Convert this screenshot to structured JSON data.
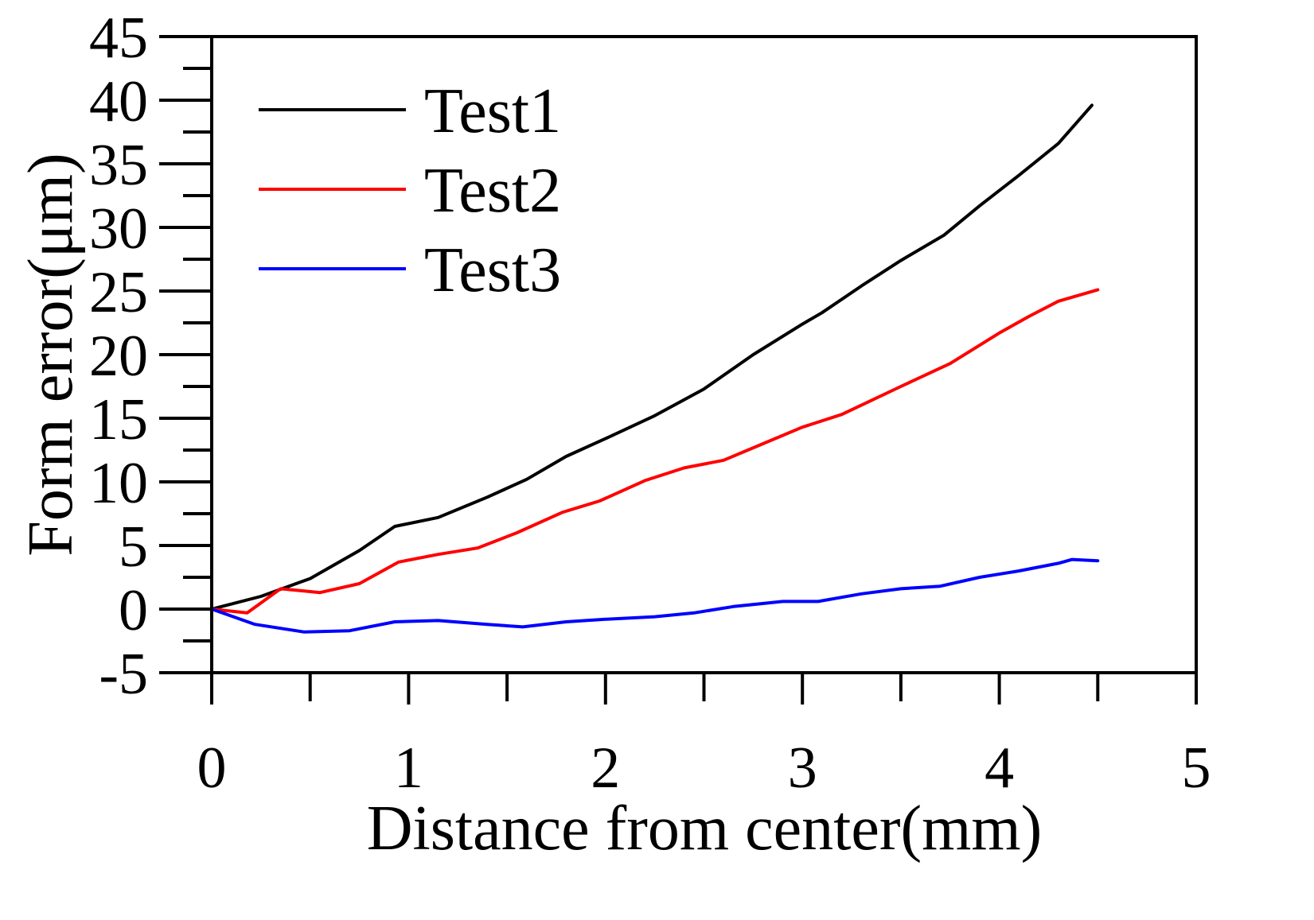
{
  "chart_data": {
    "type": "line",
    "title": "",
    "xlabel": "Distance from center(mm)",
    "ylabel": "Form error(μm)",
    "xlim": [
      0,
      5
    ],
    "ylim": [
      -5,
      45
    ],
    "xticks": [
      0,
      1,
      2,
      3,
      4,
      5
    ],
    "xtick_labels": [
      "0",
      "1",
      "2",
      "3",
      "4",
      "5"
    ],
    "xminor_step": 0.5,
    "yticks": [
      -5,
      0,
      5,
      10,
      15,
      20,
      25,
      30,
      35,
      40,
      45
    ],
    "ytick_labels": [
      "-5",
      "0",
      "5",
      "10",
      "15",
      "20",
      "25",
      "30",
      "35",
      "40",
      "45"
    ],
    "yminor_step": 2.5,
    "grid": false,
    "legend": {
      "position": "top-left",
      "entries": [
        "Test1",
        "Test2",
        "Test3"
      ]
    },
    "series": [
      {
        "name": "Test1",
        "color": "#000000",
        "x": [
          0,
          0.25,
          0.5,
          0.75,
          0.93,
          1.15,
          1.4,
          1.6,
          1.8,
          2.0,
          2.25,
          2.5,
          2.75,
          3.0,
          3.1,
          3.3,
          3.5,
          3.72,
          3.9,
          4.1,
          4.3,
          4.47
        ],
        "y": [
          0,
          1.0,
          2.4,
          4.6,
          6.5,
          7.2,
          8.8,
          10.2,
          12.0,
          13.4,
          15.2,
          17.3,
          20.0,
          22.4,
          23.3,
          25.4,
          27.4,
          29.4,
          31.7,
          34.1,
          36.6,
          39.6
        ]
      },
      {
        "name": "Test2",
        "color": "#ff0000",
        "x": [
          0,
          0.18,
          0.35,
          0.55,
          0.75,
          0.95,
          1.15,
          1.35,
          1.55,
          1.78,
          1.97,
          2.2,
          2.4,
          2.6,
          2.8,
          3.0,
          3.2,
          3.5,
          3.75,
          4.0,
          4.15,
          4.3,
          4.5
        ],
        "y": [
          0,
          -0.3,
          1.6,
          1.3,
          2.0,
          3.7,
          4.3,
          4.8,
          6.0,
          7.6,
          8.5,
          10.1,
          11.1,
          11.7,
          13.0,
          14.3,
          15.3,
          17.5,
          19.3,
          21.7,
          23.0,
          24.2,
          25.1
        ]
      },
      {
        "name": "Test3",
        "color": "#0000ff",
        "x": [
          0,
          0.22,
          0.47,
          0.7,
          0.93,
          1.15,
          1.4,
          1.58,
          1.8,
          2.0,
          2.25,
          2.45,
          2.65,
          2.9,
          3.08,
          3.3,
          3.5,
          3.7,
          3.9,
          4.1,
          4.3,
          4.37,
          4.5
        ],
        "y": [
          0,
          -1.2,
          -1.8,
          -1.7,
          -1.0,
          -0.9,
          -1.2,
          -1.4,
          -1.0,
          -0.8,
          -0.6,
          -0.3,
          0.2,
          0.6,
          0.6,
          1.2,
          1.6,
          1.8,
          2.5,
          3.0,
          3.6,
          3.9,
          3.8
        ]
      }
    ]
  }
}
